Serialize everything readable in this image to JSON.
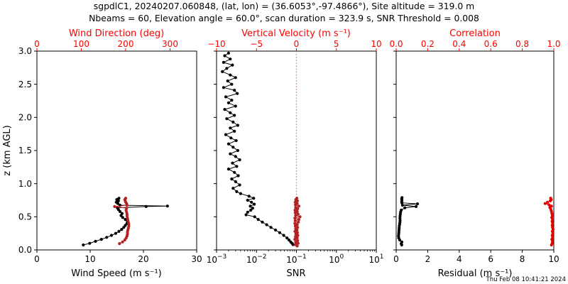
{
  "title": {
    "line1": "sgpdlC1, 20240207.060848, (lat, lon) = (36.6053°,-97.4866°), Site altitude = 319.0 m",
    "line2": "Nbeams = 60, Elevation angle = 60.0°, scan duration = 323.9 s, SNR Threshold = 0.008"
  },
  "timestamp": "Thu Feb 08 10:41:21 2024",
  "colors": {
    "black": "#000000",
    "red_axis": "#ff0000",
    "dark_red": "#b22222",
    "bright_red": "#e60000",
    "dotted_line": "#ff6b6b"
  },
  "y_axis": {
    "label": "z (km AGL)",
    "range": [
      0,
      3
    ],
    "tick_values": [
      0,
      0.5,
      1,
      1.5,
      2,
      2.5,
      3
    ],
    "tick_labels": [
      "0.0",
      "0.5",
      "1.0",
      "1.5",
      "2.0",
      "2.5",
      "3.0"
    ]
  },
  "panels": [
    {
      "bottom_axis": {
        "label": "Wind Speed (m s⁻¹)",
        "range": [
          0,
          30
        ],
        "tick_values": [
          0,
          10,
          20,
          30
        ],
        "tick_labels": [
          "0",
          "10",
          "20",
          "30"
        ]
      },
      "top_axis": {
        "label": "Wind Direction (deg)",
        "range": [
          0,
          360
        ],
        "tick_values": [
          0,
          100,
          200,
          300
        ],
        "tick_labels": [
          "0",
          "100",
          "200",
          "300"
        ]
      }
    },
    {
      "bottom_axis": {
        "label": "SNR",
        "type": "log",
        "range": [
          -3,
          1
        ],
        "tick_values": [
          -3,
          -2,
          -1,
          0,
          1
        ],
        "exponent_labels": [
          "−3",
          "−2",
          "−1",
          "0",
          "1"
        ]
      },
      "top_axis": {
        "label": "Vertical Velocity (m s⁻¹)",
        "range": [
          -10,
          10
        ],
        "tick_values": [
          -10,
          -5,
          0,
          5,
          10
        ],
        "tick_labels": [
          "−10",
          "−5",
          "0",
          "5",
          "10"
        ]
      },
      "ref_line": {
        "axis": "top",
        "value": 0
      }
    },
    {
      "bottom_axis": {
        "label": "Residual (m s⁻¹)",
        "range": [
          0,
          10
        ],
        "tick_values": [
          0,
          2,
          4,
          6,
          8,
          10
        ],
        "tick_labels": [
          "0",
          "2",
          "4",
          "6",
          "8",
          "10"
        ]
      },
      "top_axis": {
        "label": "Correlation",
        "range": [
          0,
          1
        ],
        "tick_values": [
          0,
          0.2,
          0.4,
          0.6,
          0.8,
          1.0
        ],
        "tick_labels": [
          "0.0",
          "0.2",
          "0.4",
          "0.6",
          "0.8",
          "1.0"
        ]
      }
    }
  ],
  "chart_data": {
    "type": "line",
    "ylabel": "z (km AGL)",
    "ylim": [
      0,
      3
    ],
    "grid": false,
    "series": [
      {
        "name": "wind_speed",
        "panel": 0,
        "axis": "bottom",
        "color": "black",
        "z": [
          0.075,
          0.1,
          0.13,
          0.16,
          0.19,
          0.22,
          0.25,
          0.28,
          0.31,
          0.34,
          0.37,
          0.4,
          0.43,
          0.46,
          0.49,
          0.52,
          0.55,
          0.58,
          0.61,
          0.635,
          0.655,
          0.662,
          0.675,
          0.7,
          0.72,
          0.74,
          0.76,
          0.78
        ],
        "values": [
          8.7,
          9.9,
          11.0,
          12.1,
          13.1,
          14.0,
          14.8,
          15.4,
          15.9,
          16.3,
          16.6,
          16.9,
          17.0,
          16.6,
          16.1,
          15.8,
          16.0,
          15.6,
          15.3,
          15.1,
          20.5,
          24.5,
          15.6,
          15.2,
          14.9,
          15.3,
          15.0,
          15.4
        ]
      },
      {
        "name": "wind_direction",
        "panel": 0,
        "axis": "top",
        "color": "dark_red",
        "z": [
          0.095,
          0.12,
          0.15,
          0.18,
          0.21,
          0.24,
          0.27,
          0.3,
          0.33,
          0.36,
          0.39,
          0.42,
          0.45,
          0.48,
          0.51,
          0.54,
          0.57,
          0.6,
          0.63,
          0.655,
          0.675,
          0.7,
          0.72,
          0.74,
          0.76,
          0.78
        ],
        "values": [
          186,
          193,
          198,
          201,
          203,
          204,
          204,
          205,
          206,
          207,
          207,
          206,
          205,
          204,
          203,
          203,
          202,
          201,
          202,
          175,
          203,
          202,
          200,
          199,
          198,
          200
        ]
      },
      {
        "name": "snr",
        "panel": 1,
        "axis": "bottom",
        "color": "black",
        "z": [
          2.97,
          2.93,
          2.88,
          2.83,
          2.79,
          2.74,
          2.69,
          2.64,
          2.6,
          2.55,
          2.5,
          2.45,
          2.41,
          2.36,
          2.31,
          2.26,
          2.22,
          2.17,
          2.12,
          2.07,
          2.03,
          1.98,
          1.93,
          1.88,
          1.84,
          1.79,
          1.74,
          1.69,
          1.65,
          1.6,
          1.55,
          1.5,
          1.45,
          1.41,
          1.36,
          1.31,
          1.26,
          1.22,
          1.17,
          1.12,
          1.07,
          1.03,
          0.98,
          0.93,
          0.88,
          0.85,
          0.81,
          0.78,
          0.75,
          0.72,
          0.69,
          0.66,
          0.63,
          0.6,
          0.57,
          0.53,
          0.5,
          0.46,
          0.42,
          0.38,
          0.34,
          0.3,
          0.26,
          0.22,
          0.18,
          0.15,
          0.12,
          0.1,
          0.08
        ],
        "values": [
          0.002,
          0.0016,
          0.0022,
          0.0015,
          0.0025,
          0.0018,
          0.0014,
          0.0022,
          0.003,
          0.0019,
          0.0024,
          0.0015,
          0.0028,
          0.0033,
          0.0017,
          0.0024,
          0.002,
          0.003,
          0.0016,
          0.0022,
          0.0028,
          0.0018,
          0.0026,
          0.0034,
          0.0022,
          0.0028,
          0.0017,
          0.0023,
          0.0031,
          0.002,
          0.0026,
          0.0034,
          0.0022,
          0.003,
          0.0038,
          0.0025,
          0.0032,
          0.002,
          0.0028,
          0.0035,
          0.0024,
          0.003,
          0.0038,
          0.0026,
          0.0032,
          0.004,
          0.0065,
          0.0085,
          0.006,
          0.0075,
          0.0088,
          0.007,
          0.008,
          0.0072,
          0.006,
          0.0055,
          0.009,
          0.011,
          0.014,
          0.018,
          0.023,
          0.03,
          0.038,
          0.048,
          0.058,
          0.065,
          0.072,
          0.078,
          0.082
        ]
      },
      {
        "name": "vertical_velocity",
        "panel": 1,
        "axis": "top",
        "color": "dark_red",
        "z": [
          0.06,
          0.08,
          0.1,
          0.12,
          0.14,
          0.16,
          0.18,
          0.2,
          0.22,
          0.24,
          0.26,
          0.28,
          0.3,
          0.32,
          0.34,
          0.36,
          0.38,
          0.4,
          0.42,
          0.44,
          0.46,
          0.48,
          0.5,
          0.52,
          0.54,
          0.56,
          0.58,
          0.6,
          0.62,
          0.64,
          0.66,
          0.68,
          0.7,
          0.72,
          0.74,
          0.76,
          0.78
        ],
        "values": [
          0.1,
          -0.15,
          0.2,
          -0.1,
          0.15,
          -0.2,
          0.1,
          -0.12,
          0.18,
          -0.08,
          0.12,
          -0.18,
          0.08,
          -0.1,
          0.15,
          -0.14,
          0.1,
          -0.2,
          0.25,
          -0.15,
          0.3,
          -0.2,
          0.45,
          -0.1,
          0.2,
          -0.15,
          0.1,
          -0.18,
          0.15,
          -0.1,
          0.3,
          -0.12,
          0.1,
          -0.15,
          0.12,
          -0.08,
          0.05
        ]
      },
      {
        "name": "residual",
        "panel": 2,
        "axis": "bottom",
        "color": "black",
        "z": [
          0.075,
          0.095,
          0.12,
          0.15,
          0.18,
          0.21,
          0.24,
          0.27,
          0.3,
          0.33,
          0.36,
          0.39,
          0.42,
          0.45,
          0.48,
          0.51,
          0.54,
          0.57,
          0.6,
          0.635,
          0.655,
          0.675,
          0.695,
          0.71,
          0.73,
          0.75,
          0.77,
          0.79
        ],
        "values": [
          0.35,
          0.32,
          0.36,
          0.22,
          0.16,
          0.15,
          0.16,
          0.17,
          0.18,
          0.19,
          0.2,
          0.22,
          0.24,
          0.25,
          0.24,
          0.25,
          0.26,
          0.28,
          0.32,
          0.55,
          1.26,
          0.4,
          1.35,
          0.36,
          0.35,
          0.36,
          0.35,
          0.37
        ]
      },
      {
        "name": "correlation",
        "panel": 2,
        "axis": "top",
        "color": "bright_red",
        "z": [
          0.075,
          0.1,
          0.13,
          0.16,
          0.19,
          0.22,
          0.25,
          0.28,
          0.31,
          0.34,
          0.37,
          0.4,
          0.43,
          0.46,
          0.49,
          0.52,
          0.55,
          0.58,
          0.61,
          0.64,
          0.66,
          0.68,
          0.7,
          0.72,
          0.74,
          0.76,
          0.78
        ],
        "values": [
          0.985,
          0.99,
          0.992,
          0.988,
          0.993,
          0.99,
          0.994,
          0.991,
          0.995,
          0.992,
          0.99,
          0.993,
          0.989,
          0.992,
          0.987,
          0.991,
          0.988,
          0.985,
          0.982,
          0.975,
          0.985,
          0.97,
          0.945,
          0.96,
          0.978,
          0.984,
          0.98
        ]
      }
    ]
  }
}
